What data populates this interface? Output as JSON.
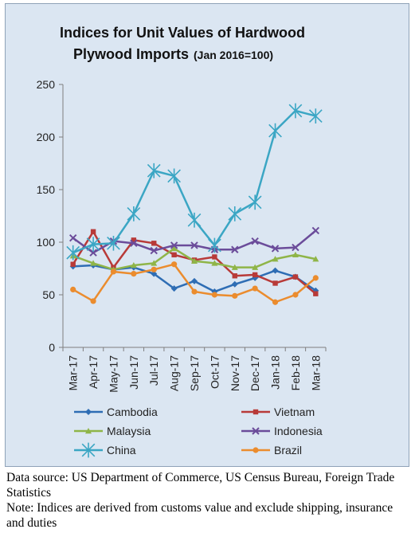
{
  "chart_data": {
    "type": "line",
    "title": "Indices for Unit Values of Hardwood",
    "title_line2": "Plywood Imports",
    "title_note": "(Jan 2016=100)",
    "categories": [
      "Mar-17",
      "Apr-17",
      "May-17",
      "Jun-17",
      "Jul-17",
      "Aug-17",
      "Sep-17",
      "Oct-17",
      "Nov-17",
      "Dec-17",
      "Jan-18",
      "Feb-18",
      "Mar-18"
    ],
    "ylim": [
      0,
      250
    ],
    "yticks": [
      "0",
      "50",
      "100",
      "150",
      "200",
      "250"
    ],
    "grid": false,
    "legend_position": "bottom",
    "series": [
      {
        "name": "Cambodia",
        "color": "#2e6db4",
        "marker": "diamond",
        "values": [
          77,
          78,
          74,
          76,
          70,
          56,
          63,
          53,
          60,
          66,
          73,
          67,
          54
        ]
      },
      {
        "name": "Vietnam",
        "color": "#b83a38",
        "marker": "square",
        "values": [
          79,
          110,
          76,
          102,
          99,
          88,
          83,
          86,
          68,
          69,
          61,
          67,
          51
        ]
      },
      {
        "name": "Malaysia",
        "color": "#8fb548",
        "marker": "triangle",
        "values": [
          87,
          80,
          74,
          78,
          80,
          94,
          82,
          80,
          76,
          76,
          84,
          88,
          84
        ]
      },
      {
        "name": "Indonesia",
        "color": "#6b4c9a",
        "marker": "x",
        "values": [
          104,
          90,
          101,
          99,
          92,
          97,
          97,
          93,
          93,
          101,
          94,
          95,
          111
        ]
      },
      {
        "name": "China",
        "color": "#3ba6c4",
        "marker": "asterisk",
        "values": [
          90,
          98,
          99,
          127,
          168,
          163,
          121,
          97,
          127,
          138,
          206,
          225,
          220
        ]
      },
      {
        "name": "Brazil",
        "color": "#eb8c2e",
        "marker": "circle",
        "values": [
          55,
          44,
          72,
          70,
          74,
          79,
          53,
          50,
          49,
          56,
          43,
          50,
          66
        ]
      }
    ]
  },
  "footnotes": {
    "source": "Data source: US Department of Commerce, US Census Bureau, Foreign Trade Statistics",
    "note": "Note: Indices are derived from customs value and exclude shipping, insurance and duties"
  }
}
